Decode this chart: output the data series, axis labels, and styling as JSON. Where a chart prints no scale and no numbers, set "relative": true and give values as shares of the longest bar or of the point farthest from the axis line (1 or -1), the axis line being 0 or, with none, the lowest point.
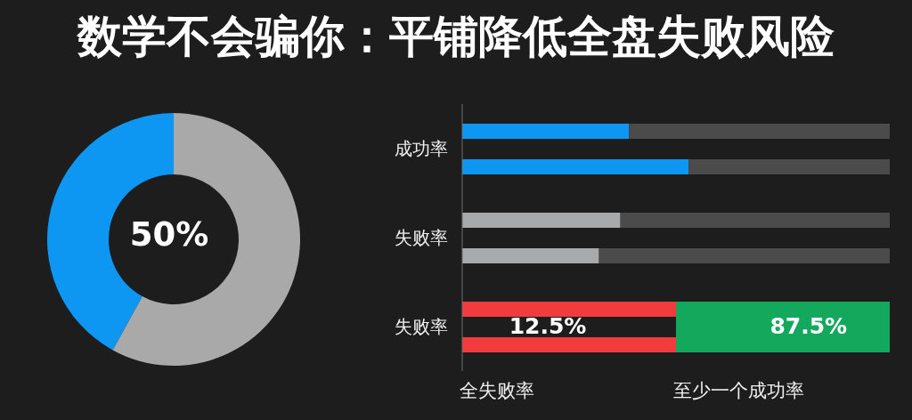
{
  "chart_data": [
    {
      "type": "donut",
      "title": "数学不会骗你：平铺降低全盘失败风险",
      "categories": [
        null,
        null
      ],
      "values": [
        42,
        58
      ],
      "colors": [
        "#0d96f2",
        "#a9a9a9"
      ],
      "annotations": [
        "50%"
      ]
    },
    {
      "type": "bar",
      "orientation": "horizontal",
      "stacked": true,
      "relative": true,
      "ylabel": "成功率",
      "categories": [
        null,
        null
      ],
      "series": [
        {
          "values": [
            0.39,
            0.53
          ],
          "color": "#0d96f2"
        },
        {
          "values": [
            0.61,
            0.47
          ],
          "color": "#4b4b4b"
        }
      ]
    },
    {
      "type": "bar",
      "orientation": "horizontal",
      "stacked": true,
      "relative": true,
      "ylabel": "失败率",
      "categories": [
        null,
        null
      ],
      "series": [
        {
          "values": [
            0.37,
            0.32
          ],
          "color": "#a7a9ab"
        },
        {
          "values": [
            0.63,
            0.68
          ],
          "color": "#4b4b4b"
        }
      ]
    },
    {
      "type": "bar",
      "orientation": "horizontal",
      "stacked": true,
      "relative": true,
      "ylabel": "失败率",
      "categories": [
        null,
        null
      ],
      "series": [
        {
          "values": [
            0.5,
            0.5
          ],
          "color": "#f23b3d"
        },
        {
          "values": [
            0.5,
            0.5
          ],
          "color": "#14a85c"
        }
      ],
      "annotations": [
        "12.5%",
        "87.5%",
        "全失败率",
        "至少一个成功率"
      ]
    }
  ]
}
